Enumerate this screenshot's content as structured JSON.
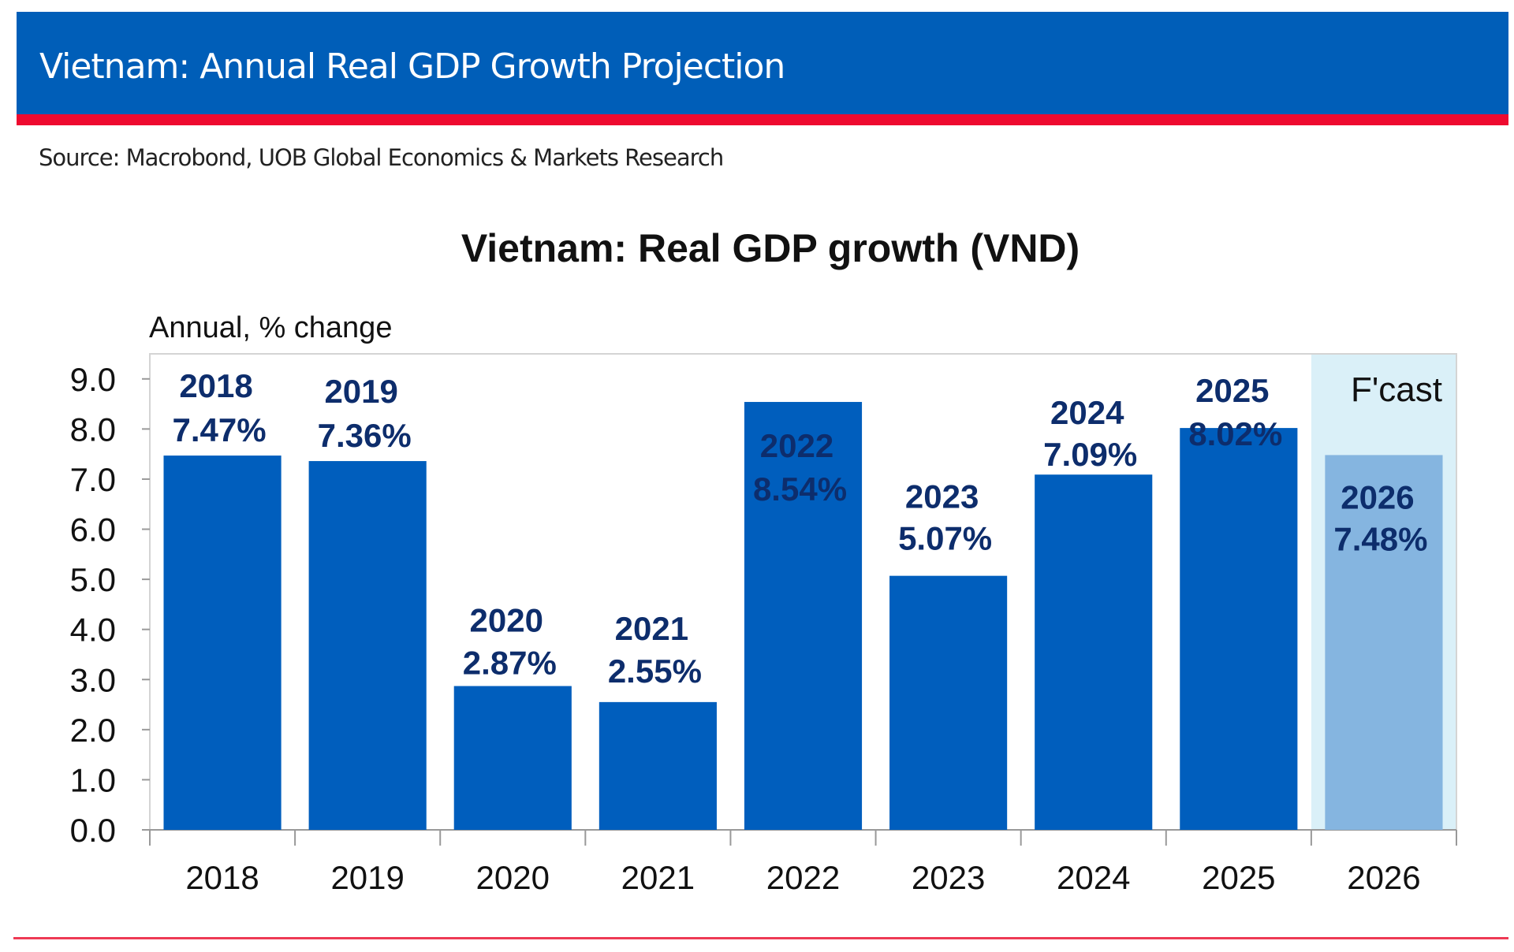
{
  "header": {
    "title": "Vietnam: Annual Real GDP Growth Projection"
  },
  "source": "Source: Macrobond, UOB Global Economics & Markets Research",
  "colors": {
    "header": "#005eb8",
    "accent_red": "#ee0a2f",
    "bar": "#005ebd",
    "forecast_bar": "#85b5e0",
    "forecast_shade": "#daf0f8",
    "label": "#0d2d6c"
  },
  "chart_data": {
    "type": "bar",
    "title": "Vietnam: Real GDP growth (VND)",
    "ylabel": "Annual, % change",
    "xlabel": "",
    "categories": [
      "2018",
      "2019",
      "2020",
      "2021",
      "2022",
      "2023",
      "2024",
      "2025",
      "2026"
    ],
    "values": [
      7.47,
      7.36,
      2.87,
      2.55,
      8.54,
      5.07,
      7.09,
      8.02,
      7.48
    ],
    "data_labels": [
      [
        "2018",
        "7.47%"
      ],
      [
        "2019",
        "7.36%"
      ],
      [
        "2020",
        "2.87%"
      ],
      [
        "2021",
        "2.55%"
      ],
      [
        "2022",
        "8.54%"
      ],
      [
        "2023",
        "5.07%"
      ],
      [
        "2024",
        "7.09%"
      ],
      [
        "2025",
        "8.02%"
      ],
      [
        "2026",
        "7.48%"
      ]
    ],
    "forecast_categories": [
      "2026"
    ],
    "forecast_label": "F'cast",
    "ylim": [
      0,
      9.5
    ],
    "yticks": [
      "0.0",
      "1.0",
      "2.0",
      "3.0",
      "4.0",
      "5.0",
      "6.0",
      "7.0",
      "8.0",
      "9.0"
    ],
    "grid": false,
    "legend": "none"
  }
}
